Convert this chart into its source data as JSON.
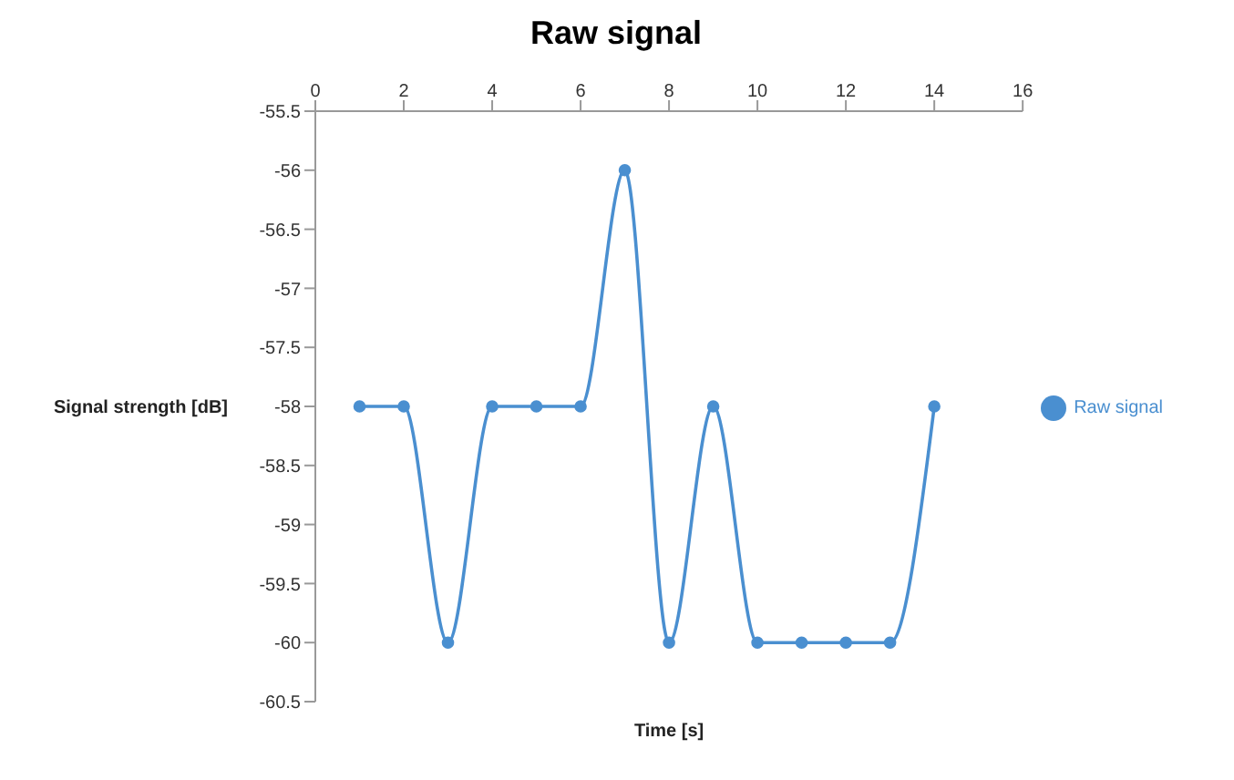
{
  "chart_data": {
    "type": "line",
    "title": "Raw signal",
    "xlabel": "Time [s]",
    "ylabel": "Signal strength [dB]",
    "x": [
      1,
      2,
      3,
      4,
      5,
      6,
      7,
      8,
      9,
      10,
      11,
      12,
      13,
      14
    ],
    "series": [
      {
        "name": "Raw signal",
        "color": "#4a8fd0",
        "values": [
          -58,
          -58,
          -60,
          -58,
          -58,
          -58,
          -56,
          -60,
          -58,
          -60,
          -60,
          -60,
          -60,
          -58
        ]
      }
    ],
    "xlim": [
      0,
      16
    ],
    "xticks": [
      0,
      2,
      4,
      6,
      8,
      10,
      12,
      14,
      16
    ],
    "ylim": [
      -60.5,
      -55.5
    ],
    "yticks": [
      -60.5,
      -60,
      -59.5,
      -59,
      -58.5,
      -58,
      -57.5,
      -57,
      -56.5,
      -56,
      -55.5
    ],
    "grid": false,
    "legend": "right",
    "marker": "circle",
    "line_style": "solid"
  }
}
